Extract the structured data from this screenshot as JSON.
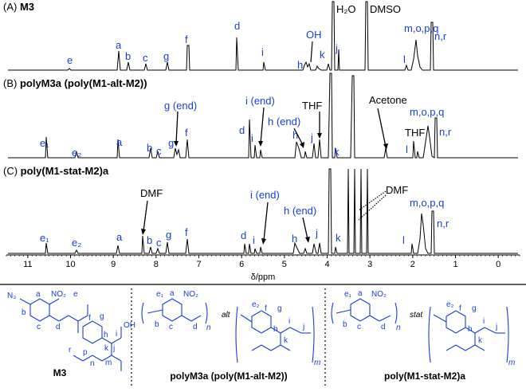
{
  "figure": {
    "panels": [
      {
        "id": "A",
        "prefix": "(A) ",
        "name": "M3",
        "suffix": "",
        "labels": [
          "e",
          "a",
          "b",
          "c",
          "g",
          "f",
          "d",
          "OH",
          "i",
          "h",
          "k",
          "j",
          "H₂O",
          "DMSO",
          "m,o,p,q",
          "n,r",
          "l"
        ]
      },
      {
        "id": "B",
        "prefix": "(B) ",
        "name": "polyM3a (poly(M1-alt-M2))",
        "labels": [
          "e₁",
          "e₂",
          "a",
          "b",
          "c",
          "g",
          "g (end)",
          "f",
          "d",
          "i (end)",
          "i",
          "h (end)",
          "THF",
          "h",
          "j",
          "k",
          "Acetone",
          "THF",
          "m,o,p,q",
          "n,r",
          "l"
        ]
      },
      {
        "id": "C",
        "prefix": "(C) ",
        "name": "poly(M1-stat-M2)a",
        "labels": [
          "DMF",
          "e₁",
          "e₂",
          "a",
          "b",
          "c",
          "g",
          "f",
          "d",
          "i (end)",
          "i",
          "h (end)",
          "h",
          "j",
          "k",
          "DMF",
          "m,o,p,q",
          "n,r",
          "l"
        ]
      }
    ],
    "axis": {
      "ticks": [
        "11",
        "10",
        "9",
        "8",
        "7",
        "6",
        "5",
        "4",
        "3",
        "2",
        "1",
        "0"
      ],
      "range": [
        11.5,
        -0.5
      ],
      "label": "δ/ppm"
    },
    "structures": {
      "m3_name": "M3",
      "alt_name": "polyM3a (poly(M1-alt-M2))",
      "stat_name": "poly(M1-stat-M2)a",
      "alt_word": "alt",
      "stat_word": "stat",
      "subscript_n": "n",
      "subscript_m": "m",
      "atom_labels": [
        "a",
        "b",
        "c",
        "d",
        "e",
        "f",
        "g",
        "h",
        "i",
        "j",
        "k",
        "l",
        "m",
        "n",
        "o",
        "p",
        "q",
        "r",
        "N₃",
        "NO₂",
        "OH",
        "H",
        "O",
        "N",
        "e₁",
        "e₂"
      ]
    },
    "colors": {
      "label_blue": "#1a3cd8",
      "text_black": "#000000"
    }
  }
}
